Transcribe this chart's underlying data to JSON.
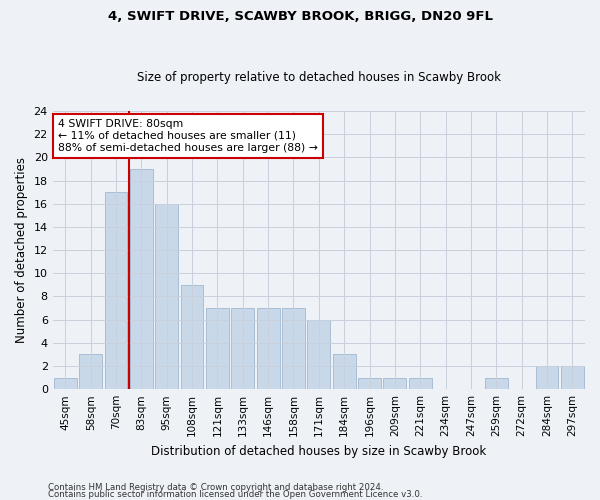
{
  "title": "4, SWIFT DRIVE, SCAWBY BROOK, BRIGG, DN20 9FL",
  "subtitle": "Size of property relative to detached houses in Scawby Brook",
  "xlabel": "Distribution of detached houses by size in Scawby Brook",
  "ylabel": "Number of detached properties",
  "categories": [
    "45sqm",
    "58sqm",
    "70sqm",
    "83sqm",
    "95sqm",
    "108sqm",
    "121sqm",
    "133sqm",
    "146sqm",
    "158sqm",
    "171sqm",
    "184sqm",
    "196sqm",
    "209sqm",
    "221sqm",
    "234sqm",
    "247sqm",
    "259sqm",
    "272sqm",
    "284sqm",
    "297sqm"
  ],
  "values": [
    1,
    3,
    17,
    19,
    16,
    9,
    7,
    7,
    7,
    7,
    6,
    3,
    1,
    1,
    1,
    0,
    0,
    1,
    0,
    2,
    2
  ],
  "bar_color": "#c8d8e8",
  "bar_edge_color": "#a0b8d0",
  "subject_line_index": 3,
  "subject_line_color": "#cc0000",
  "annotation_text": "4 SWIFT DRIVE: 80sqm\n← 11% of detached houses are smaller (11)\n88% of semi-detached houses are larger (88) →",
  "annotation_box_color": "#cc0000",
  "ylim": [
    0,
    24
  ],
  "yticks": [
    0,
    2,
    4,
    6,
    8,
    10,
    12,
    14,
    16,
    18,
    20,
    22,
    24
  ],
  "footer_line1": "Contains HM Land Registry data © Crown copyright and database right 2024.",
  "footer_line2": "Contains public sector information licensed under the Open Government Licence v3.0.",
  "background_color": "#eef2f7",
  "plot_bg_color": "#eef2f7",
  "grid_color": "#c8d0dc"
}
